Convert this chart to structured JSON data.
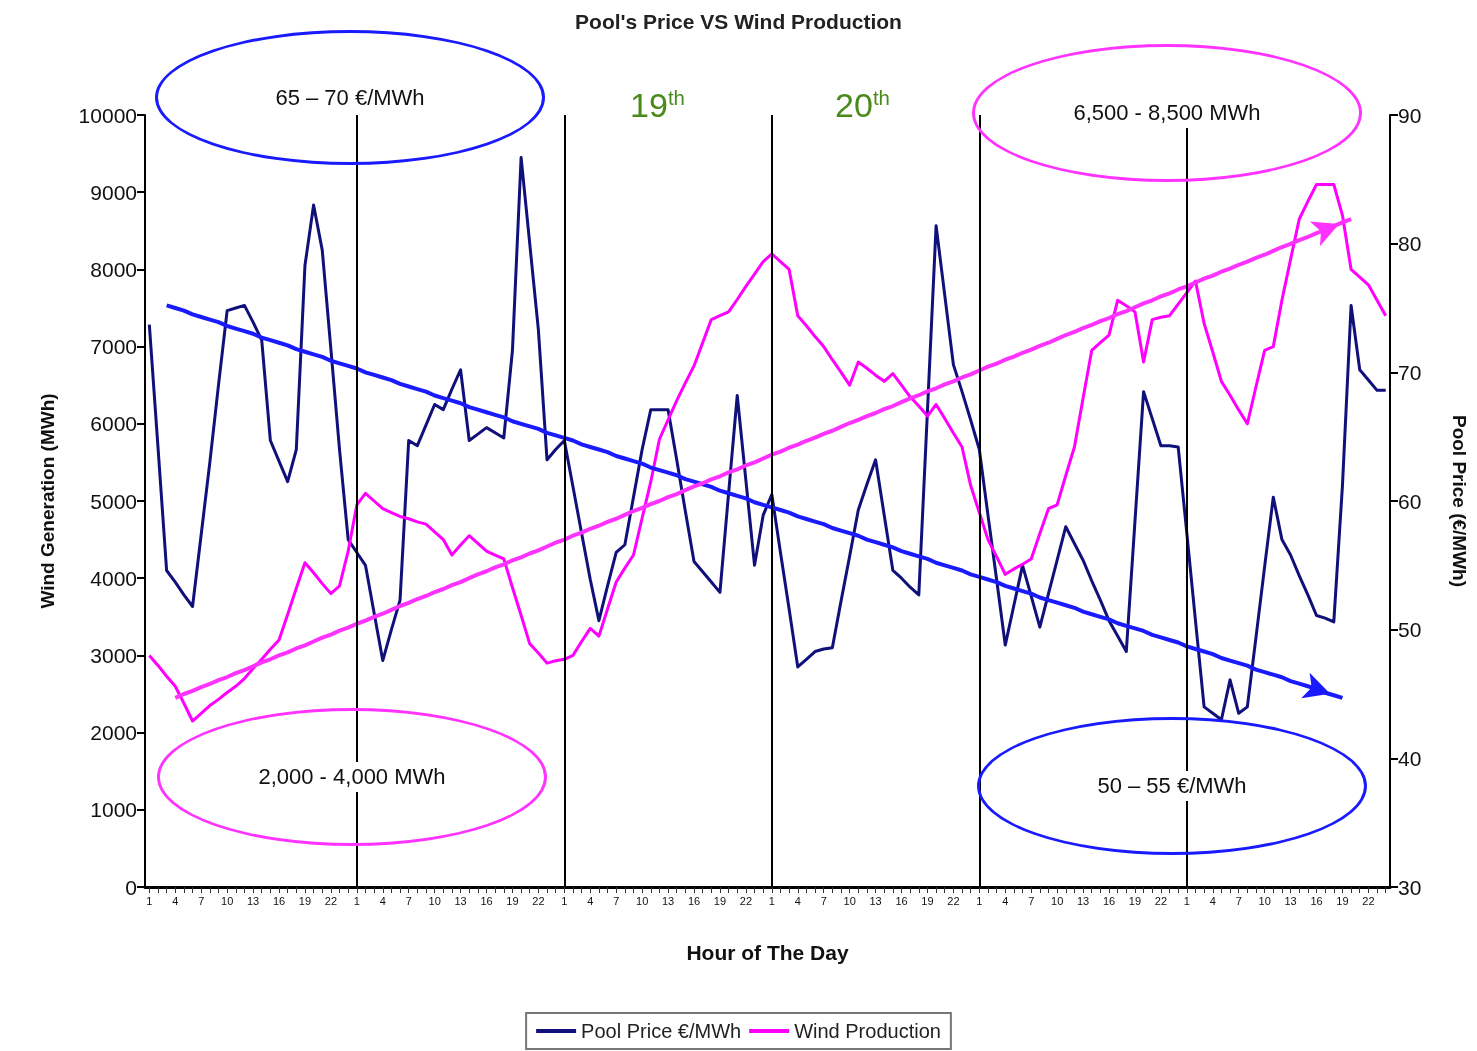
{
  "chart_data": {
    "type": "line",
    "title": "Pool's Price VS Wind Production",
    "xlabel": "Hour of The Day",
    "ylabel": "Wind Generation (MWh)",
    "y2label": "Pool Price (€/MWh)",
    "categories": [
      "1",
      null,
      null,
      "4",
      null,
      null,
      "7",
      null,
      null,
      "10",
      null,
      null,
      "13",
      null,
      null,
      "16",
      null,
      null,
      "19",
      null,
      null,
      "22",
      null,
      null,
      "1",
      null,
      null,
      "4",
      null,
      null,
      "7",
      null,
      null,
      "10",
      null,
      null,
      "13",
      null,
      null,
      "16",
      null,
      null,
      "19",
      null,
      null,
      "22",
      null,
      null,
      "1",
      null,
      null,
      "4",
      null,
      null,
      "7",
      null,
      null,
      "10",
      null,
      null,
      "13",
      null,
      null,
      "16",
      null,
      null,
      "19",
      null,
      null,
      "22",
      null,
      null,
      "1",
      null,
      null,
      "4",
      null,
      null,
      "7",
      null,
      null,
      "10",
      null,
      null,
      "13",
      null,
      null,
      "16",
      null,
      null,
      "19",
      null,
      null,
      "22",
      null,
      null,
      "1",
      null,
      null,
      "4",
      null,
      null,
      "7",
      null,
      null,
      "10",
      null,
      null,
      "13",
      null,
      null,
      "16",
      null,
      null,
      "19",
      null,
      null,
      "22",
      null,
      null,
      "1",
      null,
      null,
      "4",
      null,
      null,
      "7",
      null,
      null,
      "10",
      null,
      null,
      "13",
      null,
      null,
      "16",
      null,
      null,
      "19",
      null,
      null,
      "22",
      null,
      null
    ],
    "ylim": [
      0,
      10000
    ],
    "yticks": [
      0,
      1000,
      2000,
      3000,
      4000,
      5000,
      6000,
      7000,
      8000,
      9000,
      10000
    ],
    "y2lim": [
      30,
      90
    ],
    "y2ticks": [
      30,
      40,
      50,
      60,
      70,
      80,
      90
    ],
    "grid": false,
    "legend": "bottom",
    "marker": "none",
    "series": [
      {
        "name": "Pool Price €/MWh",
        "color": "#10107a",
        "axis": "y2",
        "values": [
          73.7,
          64.2,
          54.6,
          53.7,
          52.7,
          51.8,
          57.4,
          63,
          69,
          74.8,
          75,
          75.2,
          73.9,
          72.5,
          64.7,
          63.1,
          61.5,
          64,
          78.3,
          83,
          79.5,
          71.8,
          64,
          57,
          56,
          55,
          51.3,
          47.6,
          50,
          52.3,
          64.7,
          64.3,
          65.9,
          67.5,
          67.1,
          68.7,
          70.2,
          64.7,
          65.2,
          65.7,
          65.3,
          64.9,
          71.7,
          86.7,
          80,
          73.3,
          63.2,
          64,
          64.7,
          61.1,
          57.5,
          53.9,
          50.7,
          53.4,
          56,
          56.6,
          60.3,
          64,
          67.1,
          67.1,
          67.1,
          63.2,
          59.2,
          55.3,
          54.5,
          53.7,
          52.9,
          60.6,
          68.2,
          61.6,
          55,
          58.9,
          60.5,
          56,
          51.6,
          47.1,
          47.7,
          48.3,
          48.5,
          48.6,
          52.2,
          55.7,
          59.3,
          61.3,
          63.2,
          58.9,
          54.6,
          54,
          53.3,
          52.7,
          67,
          81.4,
          76,
          70.6,
          68.5,
          66.3,
          64,
          58.9,
          53.9,
          48.8,
          51.9,
          55,
          52.6,
          50.2,
          52.8,
          55.4,
          58,
          56.7,
          55.4,
          53.8,
          52.3,
          50.7,
          49.5,
          48.3,
          58.4,
          68.5,
          66.4,
          64.3,
          64.3,
          64.2,
          57.5,
          50.7,
          44,
          43.5,
          43,
          46.1,
          43.5,
          44,
          49.4,
          54.9,
          60.3,
          57,
          55.8,
          54.2,
          52.7,
          51.1,
          50.9,
          50.6,
          61.2,
          75.2,
          70.2,
          69.4,
          68.6,
          68.6
        ]
      },
      {
        "name": "Wind Production",
        "color": "#ff00ff",
        "values": [
          3000,
          2870,
          2730,
          2600,
          2380,
          2150,
          2250,
          2350,
          2430,
          2520,
          2600,
          2700,
          2830,
          2950,
          3080,
          3200,
          3530,
          3870,
          4200,
          4070,
          3930,
          3800,
          3900,
          4350,
          4950,
          5100,
          5000,
          4900,
          4850,
          4800,
          4770,
          4730,
          4700,
          4600,
          4500,
          4300,
          4430,
          4550,
          4450,
          4350,
          4300,
          4250,
          3880,
          3520,
          3150,
          3030,
          2900,
          2930,
          2950,
          3000,
          3180,
          3350,
          3250,
          3600,
          3950,
          4130,
          4300,
          4780,
          5250,
          5800,
          6050,
          6300,
          6530,
          6750,
          7050,
          7350,
          7400,
          7450,
          7610,
          7780,
          7940,
          8100,
          8200,
          8100,
          8000,
          7400,
          7270,
          7130,
          7000,
          6830,
          6670,
          6500,
          6800,
          6720,
          6630,
          6550,
          6650,
          6500,
          6350,
          6230,
          6100,
          6250,
          6070,
          5880,
          5700,
          5200,
          4850,
          4500,
          4280,
          4050,
          4120,
          4180,
          4250,
          4580,
          4900,
          4950,
          5330,
          5700,
          6330,
          6950,
          7050,
          7150,
          7600,
          7530,
          7450,
          6800,
          7350,
          7380,
          7400,
          7550,
          7700,
          7850,
          7300,
          6930,
          6550,
          6370,
          6180,
          6000,
          6480,
          6950,
          7000,
          7600,
          8130,
          8650,
          8880,
          9100,
          9100,
          9100,
          8700,
          8000,
          7900,
          7800,
          7600,
          7400
        ]
      },
      {
        "color": "#1a1aff",
        "axis": "y2",
        "values": [
          null,
          null,
          75.2,
          75.0,
          74.8,
          74.5,
          74.3,
          74.1,
          73.9,
          73.6,
          73.4,
          73.2,
          73.0,
          72.7,
          72.5,
          72.3,
          72.1,
          71.8,
          71.6,
          71.4,
          71.2,
          70.9,
          70.7,
          70.5,
          70.3,
          70.0,
          69.8,
          69.6,
          69.4,
          69.1,
          68.9,
          68.7,
          68.5,
          68.2,
          68.0,
          67.8,
          67.6,
          67.3,
          67.1,
          66.9,
          66.7,
          66.5,
          66.2,
          66.0,
          65.8,
          65.6,
          65.3,
          65.1,
          64.9,
          64.7,
          64.4,
          64.2,
          64.0,
          63.8,
          63.5,
          63.3,
          63.1,
          62.9,
          62.6,
          62.4,
          62.2,
          62.0,
          61.7,
          61.5,
          61.3,
          61.1,
          60.8,
          60.6,
          60.4,
          60.2,
          59.9,
          59.7,
          59.5,
          59.3,
          59.1,
          58.8,
          58.6,
          58.4,
          58.2,
          57.9,
          57.7,
          57.5,
          57.3,
          57.0,
          56.8,
          56.6,
          56.4,
          56.1,
          55.9,
          55.7,
          55.5,
          55.2,
          55.0,
          54.8,
          54.6,
          54.3,
          54.1,
          53.9,
          53.7,
          53.4,
          53.2,
          53.0,
          52.8,
          52.5,
          52.3,
          52.1,
          51.9,
          51.7,
          51.4,
          51.2,
          51.0,
          50.8,
          50.5,
          50.3,
          50.1,
          49.9,
          49.6,
          49.4,
          49.2,
          49.0,
          48.7,
          48.5,
          48.3,
          48.1,
          47.8,
          47.6,
          47.4,
          47.2,
          46.9,
          46.7,
          46.5,
          46.3,
          46.0,
          45.8,
          45.6,
          45.4,
          45.1,
          44.9,
          44.7,
          null,
          null,
          null,
          null,
          null
        ]
      },
      {
        "color": "#ff33ff",
        "values": [
          null,
          null,
          null,
          2450,
          2500,
          2540,
          2590,
          2630,
          2680,
          2720,
          2770,
          2810,
          2860,
          2910,
          2950,
          3000,
          3040,
          3090,
          3130,
          3180,
          3230,
          3270,
          3320,
          3360,
          3410,
          3450,
          3500,
          3540,
          3590,
          3640,
          3680,
          3730,
          3770,
          3820,
          3860,
          3910,
          3950,
          4000,
          4050,
          4090,
          4140,
          4180,
          4230,
          4270,
          4320,
          4360,
          4410,
          4460,
          4500,
          4550,
          4590,
          4640,
          4680,
          4730,
          4770,
          4820,
          4870,
          4910,
          4960,
          5000,
          5050,
          5090,
          5140,
          5190,
          5230,
          5280,
          5320,
          5370,
          5410,
          5460,
          5500,
          5550,
          5600,
          5640,
          5690,
          5730,
          5780,
          5820,
          5870,
          5910,
          5960,
          6010,
          6050,
          6100,
          6140,
          6190,
          6230,
          6280,
          6330,
          6370,
          6420,
          6460,
          6510,
          6550,
          6600,
          6640,
          6690,
          6740,
          6780,
          6830,
          6870,
          6920,
          6960,
          7010,
          7050,
          7100,
          7150,
          7190,
          7240,
          7280,
          7330,
          7370,
          7420,
          7460,
          7510,
          7560,
          7600,
          7650,
          7690,
          7740,
          7780,
          7830,
          7880,
          7920,
          7970,
          8010,
          8060,
          8100,
          8150,
          8190,
          8240,
          8290,
          8330,
          8380,
          8420,
          8470,
          8510,
          8560,
          8610,
          8650,
          null,
          null,
          null,
          null
        ]
      }
    ],
    "annotations": [
      "65 – 70 €/MWh",
      "19$^{th}$",
      "20$^{th}$",
      "6,500 - 8,500 MWh",
      "2,000 - 4,000 MWh",
      "50 – 55 €/MWh"
    ]
  }
}
